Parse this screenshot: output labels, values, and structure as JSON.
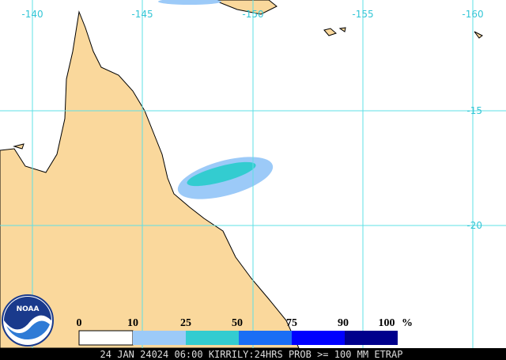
{
  "map": {
    "longitude_labels": [
      "-140",
      "-145",
      "-150",
      "-155",
      "-160"
    ],
    "latitude_labels": [
      "-15",
      "-20"
    ],
    "legend": {
      "labels": [
        "0",
        "10",
        "25",
        "50",
        "75",
        "90",
        "100"
      ],
      "unit": "%"
    },
    "logo": "NOAA",
    "caption": "24 JAN 24024 06:00 KIRRILY:24HRS PROB >= 100 MM ETRAP"
  }
}
